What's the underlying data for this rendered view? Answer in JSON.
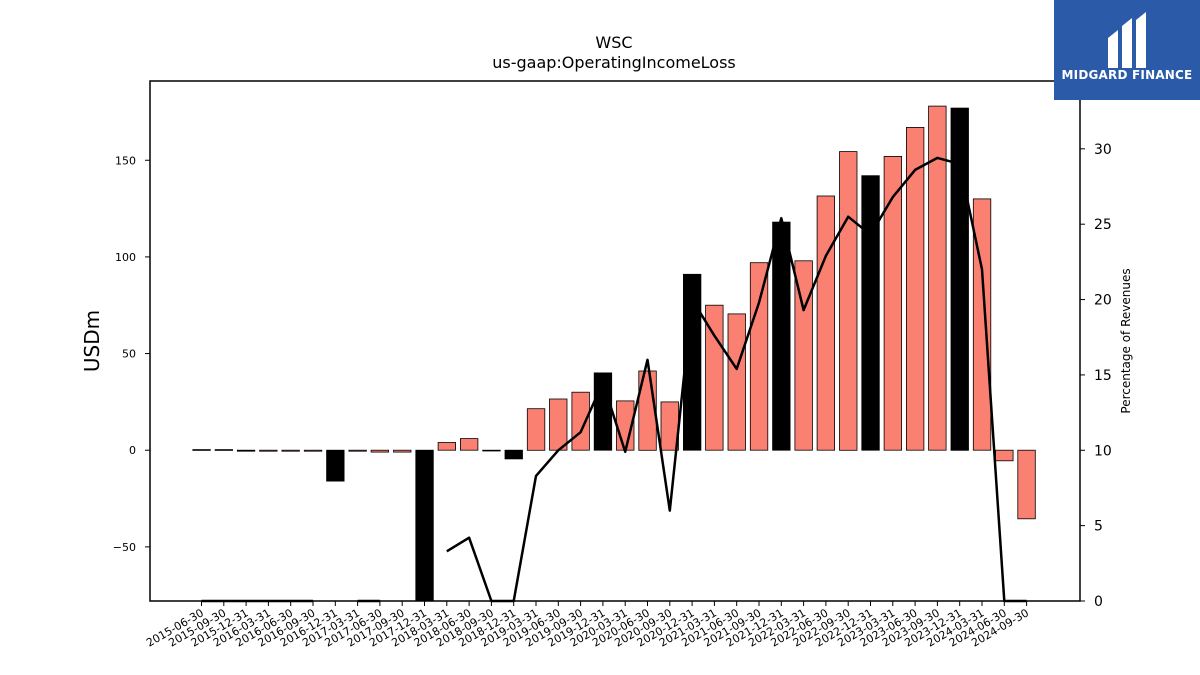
{
  "logo": {
    "text": "MIDGARD FINANCE",
    "color": "#2a5aa8"
  },
  "chart_data": {
    "type": "bar",
    "title": "WSC",
    "subtitle": "us-gaap:OperatingIncomeLoss",
    "ylabel": "USDm",
    "y2label": "Percentage of Revenues",
    "ylim": [
      -78,
      191
    ],
    "y2lim": [
      0,
      34.5
    ],
    "yticks": [
      -50,
      0,
      50,
      100,
      150
    ],
    "y2ticks": [
      0,
      5,
      10,
      15,
      20,
      25,
      30
    ],
    "colors": {
      "annual_bar": "#000000",
      "quarter_bar": "#fa8072",
      "line": "#000000"
    },
    "categories": [
      "2015-06-30",
      "2015-09-30",
      "2015-12-31",
      "2016-03-31",
      "2016-06-30",
      "2016-09-30",
      "2016-12-31",
      "2017-03-31",
      "2017-06-30",
      "2017-09-30",
      "2017-12-31",
      "2018-03-31",
      "2018-06-30",
      "2018-09-30",
      "2018-12-31",
      "2019-03-31",
      "2019-06-30",
      "2019-09-30",
      "2019-12-31",
      "2020-03-31",
      "2020-06-30",
      "2020-09-30",
      "2020-12-31",
      "2021-03-31",
      "2021-06-30",
      "2021-09-30",
      "2021-12-31",
      "2022-03-31",
      "2022-06-30",
      "2022-09-30",
      "2022-12-31",
      "2023-03-31",
      "2023-06-30",
      "2023-09-30",
      "2023-12-31",
      "2024-03-31",
      "2024-06-30",
      "2024-09-30"
    ],
    "series": [
      {
        "values": [
          0.3,
          0.3,
          -0.5,
          -0.5,
          -0.5,
          -0.5,
          -16,
          -0.5,
          -1,
          -1,
          -78,
          4,
          6,
          0,
          -4.5,
          21.5,
          26.5,
          30,
          40,
          25.5,
          41,
          25,
          91,
          75,
          70.5,
          97,
          118,
          98,
          131.5,
          154.5,
          142,
          152,
          167,
          178,
          177,
          130,
          -5.5,
          -35.5
        ],
        "annual_flags": [
          false,
          false,
          true,
          false,
          false,
          false,
          true,
          false,
          false,
          false,
          true,
          false,
          false,
          false,
          true,
          false,
          false,
          false,
          true,
          false,
          false,
          false,
          true,
          false,
          false,
          false,
          true,
          false,
          false,
          false,
          true,
          false,
          false,
          false,
          true,
          false,
          false,
          false
        ]
      },
      {
        "name": "Percentage of Revenues",
        "values": [
          0,
          0,
          0,
          0,
          0,
          0,
          null,
          0,
          0,
          null,
          null,
          3.3,
          4.2,
          0,
          0,
          8.3,
          10,
          11.2,
          14.5,
          9.9,
          16,
          6,
          20,
          17.6,
          15.4,
          19.8,
          25.4,
          19.3,
          22.9,
          25.5,
          24.3,
          26.8,
          28.6,
          29.4,
          29,
          22,
          0,
          0
        ]
      }
    ]
  }
}
